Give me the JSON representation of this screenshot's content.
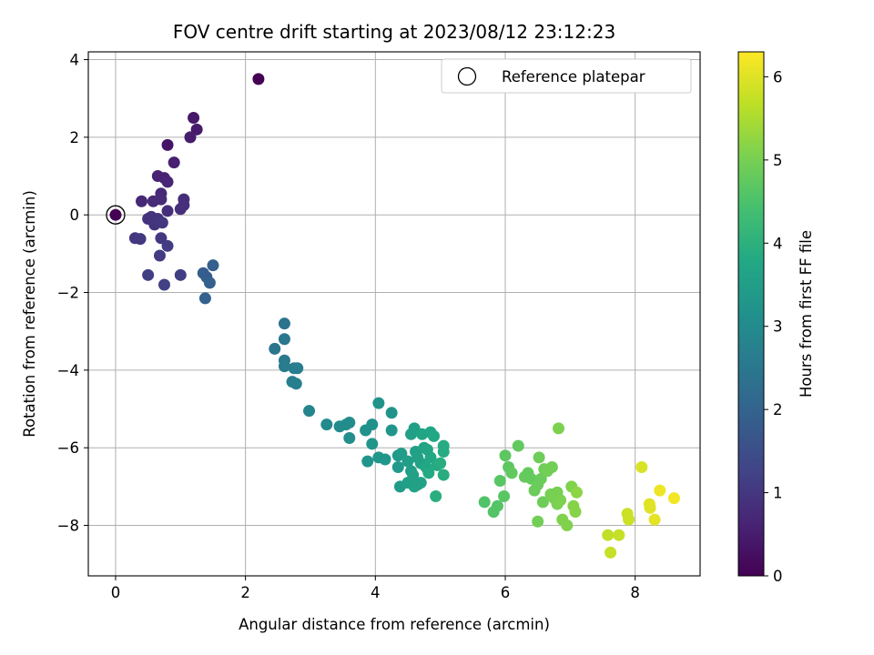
{
  "chart_data": {
    "type": "scatter",
    "title": "FOV centre drift starting at 2023/08/12 23:12:23",
    "xlabel": "Angular distance from reference (arcmin)",
    "ylabel": "Rotation from reference (arcmin)",
    "xlim": [
      -0.42,
      9.0
    ],
    "ylim": [
      -9.3,
      4.2
    ],
    "xticks": [
      "0",
      "2",
      "4",
      "6",
      "8"
    ],
    "yticks": [
      "4",
      "2",
      "0",
      "−2",
      "−4",
      "−6",
      "−8"
    ],
    "grid": true,
    "legend": {
      "position": "top-right",
      "entries": [
        "Reference platepar"
      ]
    },
    "colorbar": {
      "label": "Hours from first FF file",
      "range": [
        0,
        6.3
      ],
      "ticks": [
        "0",
        "1",
        "2",
        "3",
        "4",
        "5",
        "6"
      ],
      "colormap": "viridis"
    },
    "reference_point": {
      "x": 0.0,
      "y": 0.0,
      "hours": 0.0
    },
    "points": [
      [
        2.2,
        3.5,
        0.0
      ],
      [
        0.8,
        1.8,
        0.35
      ],
      [
        1.2,
        2.5,
        0.4
      ],
      [
        1.25,
        2.2,
        0.45
      ],
      [
        1.15,
        2.0,
        0.5
      ],
      [
        0.9,
        1.35,
        0.55
      ],
      [
        0.65,
        1.0,
        0.6
      ],
      [
        0.75,
        0.95,
        0.6
      ],
      [
        0.8,
        0.85,
        0.65
      ],
      [
        0.7,
        0.55,
        0.7
      ],
      [
        0.4,
        0.35,
        0.7
      ],
      [
        0.58,
        0.35,
        0.75
      ],
      [
        0.7,
        0.4,
        0.75
      ],
      [
        1.05,
        0.4,
        0.8
      ],
      [
        0.8,
        0.1,
        0.8
      ],
      [
        1.0,
        0.15,
        0.85
      ],
      [
        1.05,
        0.25,
        0.85
      ],
      [
        0.5,
        -0.1,
        0.9
      ],
      [
        0.55,
        -0.05,
        0.9
      ],
      [
        0.65,
        -0.1,
        0.95
      ],
      [
        0.6,
        -0.25,
        0.95
      ],
      [
        0.72,
        -0.2,
        1.0
      ],
      [
        0.3,
        -0.6,
        1.0
      ],
      [
        0.38,
        -0.62,
        1.05
      ],
      [
        0.7,
        -0.6,
        1.05
      ],
      [
        0.8,
        -0.8,
        1.1
      ],
      [
        0.68,
        -1.05,
        1.1
      ],
      [
        0.5,
        -1.55,
        1.15
      ],
      [
        1.0,
        -1.55,
        1.15
      ],
      [
        0.75,
        -1.8,
        1.2
      ],
      [
        1.35,
        -1.5,
        1.85
      ],
      [
        1.4,
        -1.6,
        1.85
      ],
      [
        1.5,
        -1.3,
        1.9
      ],
      [
        1.45,
        -1.75,
        1.95
      ],
      [
        1.38,
        -2.15,
        1.95
      ],
      [
        2.6,
        -2.8,
        2.4
      ],
      [
        2.45,
        -3.45,
        2.45
      ],
      [
        2.6,
        -3.2,
        2.5
      ],
      [
        2.6,
        -3.75,
        2.55
      ],
      [
        2.6,
        -3.9,
        2.6
      ],
      [
        2.75,
        -3.95,
        2.6
      ],
      [
        2.8,
        -3.95,
        2.65
      ],
      [
        2.72,
        -4.3,
        2.7
      ],
      [
        2.78,
        -4.35,
        2.7
      ],
      [
        2.98,
        -5.05,
        2.85
      ],
      [
        3.25,
        -5.4,
        2.95
      ],
      [
        3.45,
        -5.45,
        3.0
      ],
      [
        3.55,
        -5.4,
        3.05
      ],
      [
        3.6,
        -5.35,
        3.05
      ],
      [
        3.6,
        -5.75,
        3.1
      ],
      [
        3.85,
        -5.55,
        3.15
      ],
      [
        3.95,
        -5.4,
        3.15
      ],
      [
        4.05,
        -4.85,
        3.2
      ],
      [
        4.25,
        -5.1,
        3.2
      ],
      [
        4.25,
        -5.55,
        3.25
      ],
      [
        3.95,
        -5.9,
        3.25
      ],
      [
        3.88,
        -6.35,
        3.25
      ],
      [
        4.05,
        -6.25,
        3.3
      ],
      [
        4.15,
        -6.3,
        3.3
      ],
      [
        4.35,
        -6.2,
        3.4
      ],
      [
        4.35,
        -6.5,
        3.4
      ],
      [
        4.4,
        -6.15,
        3.45
      ],
      [
        4.38,
        -7.0,
        3.45
      ],
      [
        4.5,
        -6.35,
        3.5
      ],
      [
        4.55,
        -6.6,
        3.5
      ],
      [
        4.55,
        -5.65,
        3.55
      ],
      [
        4.6,
        -5.5,
        3.55
      ],
      [
        4.62,
        -6.1,
        3.55
      ],
      [
        4.65,
        -6.25,
        3.6
      ],
      [
        4.7,
        -6.4,
        3.6
      ],
      [
        4.58,
        -6.7,
        3.6
      ],
      [
        4.6,
        -7.0,
        3.65
      ],
      [
        4.7,
        -6.9,
        3.65
      ],
      [
        4.75,
        -6.0,
        3.65
      ],
      [
        4.8,
        -6.05,
        3.7
      ],
      [
        4.72,
        -5.65,
        3.7
      ],
      [
        4.85,
        -5.6,
        3.7
      ],
      [
        4.9,
        -5.7,
        3.75
      ],
      [
        4.85,
        -6.25,
        3.75
      ],
      [
        4.78,
        -6.5,
        3.75
      ],
      [
        4.82,
        -6.65,
        3.8
      ],
      [
        4.95,
        -6.45,
        3.8
      ],
      [
        5.05,
        -5.95,
        3.85
      ],
      [
        5.05,
        -6.1,
        3.85
      ],
      [
        5.0,
        -6.4,
        3.9
      ],
      [
        5.05,
        -6.7,
        3.9
      ],
      [
        4.93,
        -7.25,
        3.95
      ],
      [
        4.5,
        -6.9,
        3.55
      ],
      [
        4.65,
        -6.95,
        3.6
      ],
      [
        5.68,
        -7.4,
        4.55
      ],
      [
        5.82,
        -7.65,
        4.6
      ],
      [
        5.88,
        -7.5,
        4.6
      ],
      [
        5.92,
        -6.85,
        4.65
      ],
      [
        5.98,
        -7.25,
        4.65
      ],
      [
        6.0,
        -6.2,
        4.7
      ],
      [
        6.05,
        -6.5,
        4.7
      ],
      [
        6.1,
        -6.65,
        4.75
      ],
      [
        6.2,
        -5.95,
        4.75
      ],
      [
        6.3,
        -6.75,
        4.8
      ],
      [
        6.35,
        -6.65,
        4.8
      ],
      [
        6.4,
        -6.8,
        4.8
      ],
      [
        6.45,
        -7.1,
        4.85
      ],
      [
        6.5,
        -6.95,
        4.85
      ],
      [
        6.55,
        -6.8,
        4.85
      ],
      [
        6.52,
        -6.25,
        4.9
      ],
      [
        6.58,
        -7.4,
        4.9
      ],
      [
        6.6,
        -6.55,
        4.9
      ],
      [
        6.65,
        -6.6,
        4.95
      ],
      [
        6.5,
        -7.9,
        4.95
      ],
      [
        6.72,
        -6.5,
        4.95
      ],
      [
        6.7,
        -7.2,
        5.0
      ],
      [
        6.75,
        -7.3,
        5.0
      ],
      [
        6.8,
        -7.15,
        5.0
      ],
      [
        6.82,
        -5.5,
        5.05
      ],
      [
        6.85,
        -7.35,
        5.05
      ],
      [
        6.8,
        -7.45,
        5.05
      ],
      [
        6.88,
        -7.85,
        5.1
      ],
      [
        6.95,
        -8.0,
        5.1
      ],
      [
        7.02,
        -7.0,
        5.1
      ],
      [
        7.05,
        -7.5,
        5.15
      ],
      [
        7.08,
        -7.65,
        5.15
      ],
      [
        7.1,
        -7.15,
        5.2
      ],
      [
        7.58,
        -8.25,
        5.7
      ],
      [
        7.62,
        -8.7,
        5.75
      ],
      [
        7.75,
        -8.25,
        5.75
      ],
      [
        7.88,
        -7.7,
        5.8
      ],
      [
        7.9,
        -7.85,
        5.8
      ],
      [
        8.1,
        -6.5,
        5.95
      ],
      [
        8.22,
        -7.45,
        6.0
      ],
      [
        8.23,
        -7.55,
        6.0
      ],
      [
        8.3,
        -7.85,
        6.05
      ],
      [
        8.38,
        -7.1,
        6.15
      ],
      [
        8.6,
        -7.3,
        6.2
      ]
    ]
  }
}
